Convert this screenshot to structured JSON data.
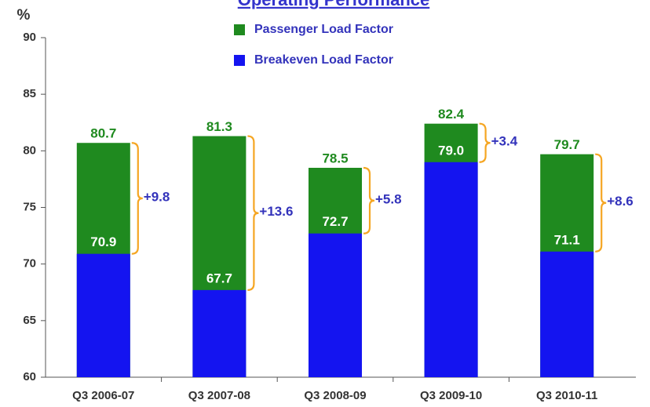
{
  "chart_data": {
    "type": "bar",
    "title": "Operating Performance",
    "y_label": "%",
    "categories": [
      "Q3 2006-07",
      "Q3 2007-08",
      "Q3 2008-09",
      "Q3 2009-10",
      "Q3 2010-11"
    ],
    "series": [
      {
        "name": "Passenger Load Factor",
        "color": "#1f8a1f",
        "values": [
          80.7,
          81.3,
          78.5,
          82.4,
          79.7
        ]
      },
      {
        "name": "Breakeven Load Factor",
        "color": "#1414f0",
        "values": [
          70.9,
          67.7,
          72.7,
          79.0,
          71.1
        ],
        "value_labels": [
          "70.9",
          "67.7",
          "72.7",
          "79.0",
          "71.1"
        ]
      }
    ],
    "annotations": [
      "+9.8",
      "+13.6",
      "+5.8",
      "+3.4",
      "+8.6"
    ],
    "ylim": [
      60,
      90
    ],
    "yticks": [
      60,
      65,
      70,
      75,
      80,
      85,
      90
    ],
    "overlap": true
  }
}
